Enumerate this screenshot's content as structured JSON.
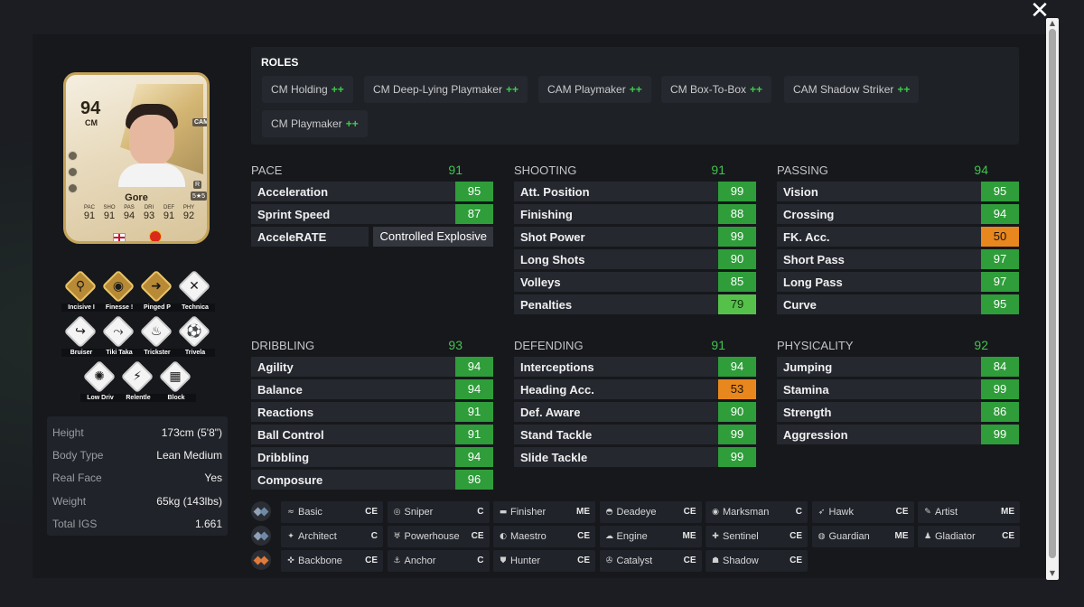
{
  "player": {
    "name": "Gore",
    "rating": "94",
    "position": "CM",
    "alt_position": "CAM",
    "weak_foot": "R",
    "skill_moves": "5★5",
    "stats": [
      {
        "label": "PAC",
        "value": "91"
      },
      {
        "label": "SHO",
        "value": "91"
      },
      {
        "label": "PAS",
        "value": "94"
      },
      {
        "label": "DRI",
        "value": "93"
      },
      {
        "label": "DEF",
        "value": "91"
      },
      {
        "label": "PHY",
        "value": "92"
      }
    ]
  },
  "playstyles": [
    {
      "label": "Incisive I",
      "icon": "incisive-pass-icon",
      "glyph": "⚲",
      "gold": true
    },
    {
      "label": "Finesse !",
      "icon": "finesse-shot-icon",
      "glyph": "◉",
      "gold": true
    },
    {
      "label": "Pinged P",
      "icon": "pinged-pass-icon",
      "glyph": "➜",
      "gold": true
    },
    {
      "label": "Technica",
      "icon": "technical-icon",
      "glyph": "✕",
      "gold": false
    },
    {
      "label": "Bruiser",
      "icon": "bruiser-icon",
      "glyph": "↪",
      "gold": false
    },
    {
      "label": "Tiki Taka",
      "icon": "tiki-taka-icon",
      "glyph": "⤳",
      "gold": false
    },
    {
      "label": "Trickster",
      "icon": "trickster-icon",
      "glyph": "♨",
      "gold": false
    },
    {
      "label": "Trivela",
      "icon": "trivela-icon",
      "glyph": "⚽",
      "gold": false
    },
    {
      "label": "Low Driv",
      "icon": "low-driven-shot-icon",
      "glyph": "✺",
      "gold": false
    },
    {
      "label": "Relentle",
      "icon": "relentless-icon",
      "glyph": "⚡",
      "gold": false
    },
    {
      "label": "Block",
      "icon": "block-icon",
      "glyph": "▦",
      "gold": false
    }
  ],
  "info": [
    {
      "label": "Height",
      "value": "173cm (5'8\")"
    },
    {
      "label": "Body Type",
      "value": "Lean Medium"
    },
    {
      "label": "Real Face",
      "value": "Yes"
    },
    {
      "label": "Weight",
      "value": "65kg (143lbs)"
    },
    {
      "label": "Total IGS",
      "value": "1.661"
    }
  ],
  "roles": {
    "title": "ROLES",
    "items": [
      {
        "label": "CM Holding",
        "plus": "++"
      },
      {
        "label": "CM Deep-Lying Playmaker",
        "plus": "++"
      },
      {
        "label": "CAM Playmaker",
        "plus": "++"
      },
      {
        "label": "CM Box-To-Box",
        "plus": "++"
      },
      {
        "label": "CAM Shadow Striker",
        "plus": "++"
      },
      {
        "label": "CM Playmaker",
        "plus": "++"
      }
    ]
  },
  "stat_groups": [
    {
      "title": "PACE",
      "total": "91",
      "rows": [
        {
          "label": "Acceleration",
          "value": "95",
          "color": "g"
        },
        {
          "label": "Sprint Speed",
          "value": "87",
          "color": "g"
        },
        {
          "label": "AcceleRATE",
          "value": "Controlled Explosive",
          "color": "text"
        }
      ]
    },
    {
      "title": "SHOOTING",
      "total": "91",
      "rows": [
        {
          "label": "Att. Position",
          "value": "99",
          "color": "g"
        },
        {
          "label": "Finishing",
          "value": "88",
          "color": "g"
        },
        {
          "label": "Shot Power",
          "value": "99",
          "color": "g"
        },
        {
          "label": "Long Shots",
          "value": "90",
          "color": "g"
        },
        {
          "label": "Volleys",
          "value": "85",
          "color": "g"
        },
        {
          "label": "Penalties",
          "value": "79",
          "color": "lg"
        }
      ]
    },
    {
      "title": "PASSING",
      "total": "94",
      "rows": [
        {
          "label": "Vision",
          "value": "95",
          "color": "g"
        },
        {
          "label": "Crossing",
          "value": "94",
          "color": "g"
        },
        {
          "label": "FK. Acc.",
          "value": "50",
          "color": "o"
        },
        {
          "label": "Short Pass",
          "value": "97",
          "color": "g"
        },
        {
          "label": "Long Pass",
          "value": "97",
          "color": "g"
        },
        {
          "label": "Curve",
          "value": "95",
          "color": "g"
        }
      ]
    },
    {
      "title": "DRIBBLING",
      "total": "93",
      "rows": [
        {
          "label": "Agility",
          "value": "94",
          "color": "g"
        },
        {
          "label": "Balance",
          "value": "94",
          "color": "g"
        },
        {
          "label": "Reactions",
          "value": "91",
          "color": "g"
        },
        {
          "label": "Ball Control",
          "value": "91",
          "color": "g"
        },
        {
          "label": "Dribbling",
          "value": "94",
          "color": "g"
        },
        {
          "label": "Composure",
          "value": "96",
          "color": "g"
        }
      ]
    },
    {
      "title": "DEFENDING",
      "total": "91",
      "rows": [
        {
          "label": "Interceptions",
          "value": "94",
          "color": "g"
        },
        {
          "label": "Heading Acc.",
          "value": "53",
          "color": "o"
        },
        {
          "label": "Def. Aware",
          "value": "90",
          "color": "g"
        },
        {
          "label": "Stand Tackle",
          "value": "99",
          "color": "g"
        },
        {
          "label": "Slide Tackle",
          "value": "99",
          "color": "g"
        }
      ]
    },
    {
      "title": "PHYSICALITY",
      "total": "92",
      "rows": [
        {
          "label": "Jumping",
          "value": "84",
          "color": "g"
        },
        {
          "label": "Stamina",
          "value": "99",
          "color": "g"
        },
        {
          "label": "Strength",
          "value": "86",
          "color": "g"
        },
        {
          "label": "Aggression",
          "value": "99",
          "color": "g"
        }
      ]
    }
  ],
  "chemistry_styles": [
    [
      {
        "name": "Basic",
        "boost": "CE",
        "glyph": "≈"
      },
      {
        "name": "Sniper",
        "boost": "C",
        "glyph": "◎"
      },
      {
        "name": "Finisher",
        "boost": "ME",
        "glyph": "▬"
      },
      {
        "name": "Deadeye",
        "boost": "CE",
        "glyph": "◓"
      },
      {
        "name": "Marksman",
        "boost": "C",
        "glyph": "◉"
      },
      {
        "name": "Hawk",
        "boost": "CE",
        "glyph": "➶"
      },
      {
        "name": "Artist",
        "boost": "ME",
        "glyph": "✎"
      }
    ],
    [
      {
        "name": "Architect",
        "boost": "C",
        "glyph": "✦"
      },
      {
        "name": "Powerhouse",
        "boost": "CE",
        "glyph": "♅"
      },
      {
        "name": "Maestro",
        "boost": "CE",
        "glyph": "◐"
      },
      {
        "name": "Engine",
        "boost": "ME",
        "glyph": "☁"
      },
      {
        "name": "Sentinel",
        "boost": "CE",
        "glyph": "✚"
      },
      {
        "name": "Guardian",
        "boost": "ME",
        "glyph": "◍"
      },
      {
        "name": "Gladiator",
        "boost": "CE",
        "glyph": "♟"
      }
    ],
    [
      {
        "name": "Backbone",
        "boost": "CE",
        "glyph": "✜"
      },
      {
        "name": "Anchor",
        "boost": "C",
        "glyph": "⚓"
      },
      {
        "name": "Hunter",
        "boost": "CE",
        "glyph": "⛊"
      },
      {
        "name": "Catalyst",
        "boost": "CE",
        "glyph": "✇"
      },
      {
        "name": "Shadow",
        "boost": "CE",
        "glyph": "☗"
      }
    ]
  ],
  "close_glyph": "✕",
  "colors": {
    "green": "#2f9d3a",
    "light_green": "#55c14a",
    "orange": "#e8871e",
    "total_green": "#43c24f"
  }
}
